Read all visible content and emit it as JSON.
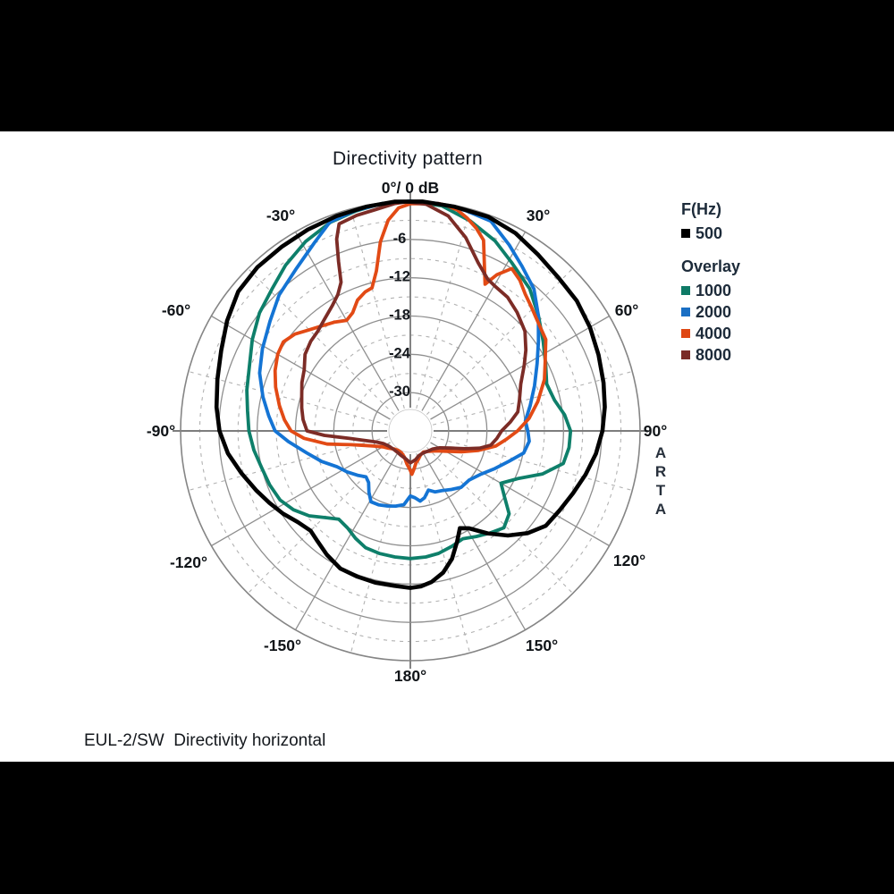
{
  "title": "Directivity pattern",
  "footer": "EUL-2/SW  Directivity horizontal",
  "watermark": "ARTA",
  "legend": {
    "freq_header": "F(Hz)",
    "overlay_header": "Overlay",
    "current": {
      "label": "500",
      "color": "#000000"
    },
    "overlays": [
      {
        "label": "1000",
        "color": "#0e7a66"
      },
      {
        "label": "2000",
        "color": "#1a6fc4"
      },
      {
        "label": "4000",
        "color": "#df4713"
      },
      {
        "label": "8000",
        "color": "#7a2a26"
      }
    ]
  },
  "chart_data": {
    "type": "polar",
    "title": "Directivity pattern",
    "subtitle": "EUL-2/SW  Directivity horizontal",
    "units": {
      "angle": "deg",
      "radial": "dB"
    },
    "angle_axis": {
      "labels": [
        "0°/ 0 dB",
        "30°",
        "60°",
        "90°",
        "120°",
        "150°",
        "180°",
        "-150°",
        "-120°",
        "-90°",
        "-60°",
        "-30°"
      ],
      "solid_spoke_step_deg": 30,
      "dashed_spoke_step_deg": 15
    },
    "radial_axis": {
      "max_db": 0,
      "min_db": -36,
      "solid_ring_step_db": 6,
      "dashed_ring_step_db": 3,
      "tick_labels": [
        "-6",
        "-12",
        "-18",
        "-24",
        "-30"
      ],
      "tick_values": [
        -6,
        -12,
        -18,
        -24,
        -30
      ]
    },
    "legend_title": "F(Hz)",
    "overlay_title": "Overlay",
    "series": [
      {
        "name": "1000",
        "color": "#0e7f6a",
        "width": 3.8,
        "points": [
          [
            -180,
            -16
          ],
          [
            -173,
            -16.1
          ],
          [
            -166,
            -16.2
          ],
          [
            -159,
            -16.4
          ],
          [
            -153,
            -17.1
          ],
          [
            -147,
            -17.9
          ],
          [
            -141,
            -18.2
          ],
          [
            -136,
            -17.1
          ],
          [
            -130,
            -15.3
          ],
          [
            -124,
            -13.9
          ],
          [
            -118,
            -12.9
          ],
          [
            -111,
            -12.4
          ],
          [
            -104,
            -12
          ],
          [
            -97,
            -11.3
          ],
          [
            -90,
            -10.7
          ],
          [
            -83,
            -10.3
          ],
          [
            -76,
            -9.6
          ],
          [
            -68,
            -8.8
          ],
          [
            -60,
            -7.4
          ],
          [
            -52,
            -6
          ],
          [
            -44,
            -4.9
          ],
          [
            -37,
            -3.5
          ],
          [
            -29,
            -2.1
          ],
          [
            -21,
            -1
          ],
          [
            -14,
            -0.5
          ],
          [
            -7,
            -0.1
          ],
          [
            0,
            0
          ],
          [
            8,
            -0.4
          ],
          [
            16,
            -1.8
          ],
          [
            24,
            -3.4
          ],
          [
            31,
            -5.2
          ],
          [
            40,
            -6.9
          ],
          [
            48,
            -9
          ],
          [
            56,
            -10.9
          ],
          [
            64,
            -12.4
          ],
          [
            71,
            -13.4
          ],
          [
            78,
            -12.9
          ],
          [
            84,
            -11.7
          ],
          [
            90,
            -10.9
          ],
          [
            96,
            -11
          ],
          [
            102,
            -11.5
          ],
          [
            108,
            -14.2
          ],
          [
            114,
            -17.6
          ],
          [
            120,
            -19.6
          ],
          [
            125,
            -18
          ],
          [
            130,
            -15.8
          ],
          [
            136,
            -14.9
          ],
          [
            142,
            -15.7
          ],
          [
            148,
            -16.5
          ],
          [
            154,
            -17.2
          ],
          [
            160,
            -16.8
          ],
          [
            167,
            -16.3
          ],
          [
            173,
            -16.1
          ],
          [
            180,
            -16
          ]
        ]
      },
      {
        "name": "2000",
        "color": "#1474d4",
        "width": 3.8,
        "points": [
          [
            -180,
            -25.8
          ],
          [
            -175,
            -24.4
          ],
          [
            -169,
            -24
          ],
          [
            -163,
            -23.7
          ],
          [
            -157,
            -23.4
          ],
          [
            -151,
            -23.3
          ],
          [
            -146,
            -24.4
          ],
          [
            -141,
            -25.6
          ],
          [
            -136,
            -26
          ],
          [
            -130,
            -25.2
          ],
          [
            -123,
            -24.2
          ],
          [
            -116,
            -23.2
          ],
          [
            -109,
            -21.3
          ],
          [
            -102,
            -19.4
          ],
          [
            -95,
            -16.8
          ],
          [
            -90,
            -14.8
          ],
          [
            -84,
            -13.7
          ],
          [
            -77,
            -12.3
          ],
          [
            -69,
            -10.7
          ],
          [
            -61,
            -9.5
          ],
          [
            -52,
            -8.1
          ],
          [
            -44,
            -6.4
          ],
          [
            -35,
            -4.9
          ],
          [
            -27,
            -2.9
          ],
          [
            -21,
            -0.9
          ],
          [
            -14,
            -0.4
          ],
          [
            -7,
            -0.1
          ],
          [
            0,
            0
          ],
          [
            7,
            -0.1
          ],
          [
            14,
            -0.4
          ],
          [
            21,
            -0.8
          ],
          [
            28,
            -3
          ],
          [
            34,
            -4.8
          ],
          [
            41,
            -6.5
          ],
          [
            48,
            -9
          ],
          [
            55,
            -11.5
          ],
          [
            62,
            -13.5
          ],
          [
            70,
            -15.3
          ],
          [
            78,
            -16.8
          ],
          [
            85,
            -17.9
          ],
          [
            90,
            -17.6
          ],
          [
            95,
            -17.3
          ],
          [
            101,
            -17.9
          ],
          [
            107,
            -19.8
          ],
          [
            114,
            -21.5
          ],
          [
            122,
            -23.1
          ],
          [
            130,
            -24
          ],
          [
            138,
            -24.1
          ],
          [
            145,
            -24.8
          ],
          [
            152,
            -25.4
          ],
          [
            158,
            -25.7
          ],
          [
            163,
            -26.3
          ],
          [
            168,
            -25.3
          ],
          [
            172,
            -24.9
          ],
          [
            176,
            -25.5
          ],
          [
            180,
            -25.8
          ]
        ]
      },
      {
        "name": "4000",
        "color": "#e24a15",
        "width": 3.8,
        "points": [
          [
            -180,
            -29.8
          ],
          [
            -174,
            -30.8
          ],
          [
            -167,
            -31.8
          ],
          [
            -158,
            -32.3
          ],
          [
            -148,
            -32.4
          ],
          [
            -138,
            -32.2
          ],
          [
            -128,
            -31.6
          ],
          [
            -120,
            -31
          ],
          [
            -113,
            -29.9
          ],
          [
            -108,
            -28.6
          ],
          [
            -103,
            -26.4
          ],
          [
            -99,
            -22.8
          ],
          [
            -94,
            -19.3
          ],
          [
            -90,
            -17.3
          ],
          [
            -85,
            -16.2
          ],
          [
            -79,
            -15.1
          ],
          [
            -72,
            -13.8
          ],
          [
            -66,
            -12.8
          ],
          [
            -60,
            -12
          ],
          [
            -55,
            -11.7
          ],
          [
            -50,
            -12.4
          ],
          [
            -45,
            -13.6
          ],
          [
            -40,
            -14.5
          ],
          [
            -35,
            -15.2
          ],
          [
            -30,
            -16
          ],
          [
            -26,
            -15.4
          ],
          [
            -22,
            -13.9
          ],
          [
            -18,
            -13.1
          ],
          [
            -15,
            -12.8
          ],
          [
            -12,
            -10.4
          ],
          [
            -9,
            -6
          ],
          [
            -6,
            -2.8
          ],
          [
            -3,
            -1
          ],
          [
            0,
            -0.4
          ],
          [
            4,
            -0.3
          ],
          [
            7,
            -0.1
          ],
          [
            9,
            -0.2
          ],
          [
            12,
            -0.6
          ],
          [
            15,
            -1.5
          ],
          [
            18,
            -2.6
          ],
          [
            21,
            -4
          ],
          [
            24,
            -7.5
          ],
          [
            27,
            -10.2
          ],
          [
            29,
            -8
          ],
          [
            32,
            -6
          ],
          [
            36,
            -6.8
          ],
          [
            40,
            -8
          ],
          [
            44,
            -8.8
          ],
          [
            48,
            -9.5
          ],
          [
            56,
            -10.4
          ],
          [
            63,
            -12.3
          ],
          [
            69,
            -13.5
          ],
          [
            77,
            -15.5
          ],
          [
            84,
            -17.3
          ],
          [
            90,
            -19.2
          ],
          [
            95,
            -20.9
          ],
          [
            100,
            -22.4
          ],
          [
            106,
            -24.9
          ],
          [
            112,
            -27.3
          ],
          [
            119,
            -29.4
          ],
          [
            128,
            -30.9
          ],
          [
            138,
            -31.7
          ],
          [
            148,
            -32.1
          ],
          [
            157,
            -31.9
          ],
          [
            164,
            -31.4
          ],
          [
            170,
            -30.9
          ],
          [
            175,
            -29.9
          ],
          [
            178,
            -29.2
          ],
          [
            180,
            -29.8
          ]
        ]
      },
      {
        "name": "8000",
        "color": "#7c2c26",
        "width": 3.8,
        "points": [
          [
            -180,
            -31
          ],
          [
            -170,
            -31.6
          ],
          [
            -159,
            -31.9
          ],
          [
            -148,
            -32.1
          ],
          [
            -137,
            -32.1
          ],
          [
            -126,
            -31.9
          ],
          [
            -116,
            -31.4
          ],
          [
            -108,
            -30.4
          ],
          [
            -101,
            -28.4
          ],
          [
            -97,
            -26.4
          ],
          [
            -93,
            -22.5
          ],
          [
            -90,
            -19.8
          ],
          [
            -84,
            -19.1
          ],
          [
            -78,
            -18.6
          ],
          [
            -72,
            -18.1
          ],
          [
            -66,
            -17.4
          ],
          [
            -60,
            -16.8
          ],
          [
            -54,
            -15.6
          ],
          [
            -48,
            -15
          ],
          [
            -43,
            -14.7
          ],
          [
            -38,
            -14
          ],
          [
            -32,
            -12.9
          ],
          [
            -28,
            -11.8
          ],
          [
            -25,
            -10.3
          ],
          [
            -23,
            -7.2
          ],
          [
            -21,
            -3.8
          ],
          [
            -19,
            -1.7
          ],
          [
            -14,
            -1.2
          ],
          [
            -9,
            -0.9
          ],
          [
            -4,
            -0.3
          ],
          [
            -1,
            -0.1
          ],
          [
            4,
            -0.4
          ],
          [
            10,
            -1.8
          ],
          [
            16,
            -4.5
          ],
          [
            22,
            -7.6
          ],
          [
            27,
            -9.3
          ],
          [
            30,
            -9.7
          ],
          [
            36,
            -10.1
          ],
          [
            42,
            -11
          ],
          [
            49,
            -12.2
          ],
          [
            55,
            -13.9
          ],
          [
            60,
            -15.4
          ],
          [
            67,
            -17.2
          ],
          [
            74,
            -18.2
          ],
          [
            80,
            -18.9
          ],
          [
            85,
            -20.3
          ],
          [
            90,
            -21.7
          ],
          [
            95,
            -22.4
          ],
          [
            100,
            -23.2
          ],
          [
            104,
            -24.8
          ],
          [
            108,
            -27
          ],
          [
            113,
            -29.1
          ],
          [
            120,
            -30.7
          ],
          [
            129,
            -31.5
          ],
          [
            139,
            -31.8
          ],
          [
            150,
            -32
          ],
          [
            161,
            -31.9
          ],
          [
            170,
            -31.4
          ],
          [
            180,
            -31
          ]
        ]
      },
      {
        "name": "500",
        "color": "#000000",
        "width": 4.6,
        "points": [
          [
            -180,
            -11.4
          ],
          [
            -174,
            -11.6
          ],
          [
            -167,
            -11.6
          ],
          [
            -160,
            -11.7
          ],
          [
            -153,
            -11.8
          ],
          [
            -146,
            -12.6
          ],
          [
            -140,
            -13.4
          ],
          [
            -135,
            -13.9
          ],
          [
            -129,
            -13.3
          ],
          [
            -123,
            -12.2
          ],
          [
            -117,
            -11.2
          ],
          [
            -111,
            -10.1
          ],
          [
            -104,
            -8.7
          ],
          [
            -97,
            -7.2
          ],
          [
            -90,
            -6.1
          ],
          [
            -83,
            -5.4
          ],
          [
            -75,
            -4.7
          ],
          [
            -67,
            -3.8
          ],
          [
            -59,
            -2.5
          ],
          [
            -51,
            -1.3
          ],
          [
            -43,
            -0.9
          ],
          [
            -35,
            -0.8
          ],
          [
            -27,
            -0.6
          ],
          [
            -19,
            -0.4
          ],
          [
            -11,
            -0.2
          ],
          [
            -4,
            0
          ],
          [
            3,
            0
          ],
          [
            11,
            -0.2
          ],
          [
            20,
            -0.3
          ],
          [
            28,
            -0.9
          ],
          [
            36,
            -1.9
          ],
          [
            44,
            -2.6
          ],
          [
            52,
            -2.9
          ],
          [
            60,
            -3.5
          ],
          [
            68,
            -4.2
          ],
          [
            76,
            -4.8
          ],
          [
            83,
            -5.3
          ],
          [
            90,
            -5.9
          ],
          [
            97,
            -6.7
          ],
          [
            104,
            -7.7
          ],
          [
            111,
            -8.7
          ],
          [
            118,
            -9.5
          ],
          [
            125,
            -10.1
          ],
          [
            131,
            -11.6
          ],
          [
            137,
            -13.6
          ],
          [
            143,
            -15.9
          ],
          [
            149,
            -18.2
          ],
          [
            153,
            -18.9
          ],
          [
            157,
            -17.2
          ],
          [
            162,
            -14.9
          ],
          [
            167,
            -13.2
          ],
          [
            172,
            -12.1
          ],
          [
            176,
            -11.6
          ],
          [
            180,
            -11.4
          ]
        ]
      }
    ]
  }
}
